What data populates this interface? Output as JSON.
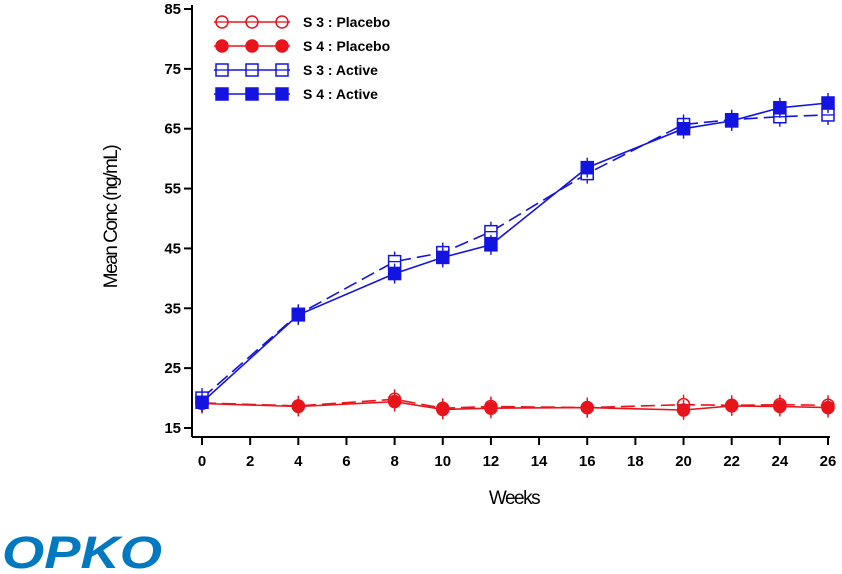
{
  "chart_data": {
    "type": "line",
    "title": "",
    "xlabel": "Weeks",
    "ylabel": "Mean Conc (ng/mL)",
    "xlim": [
      0,
      26
    ],
    "ylim": [
      15,
      85
    ],
    "x_ticks": [
      0,
      2,
      4,
      6,
      8,
      10,
      12,
      14,
      16,
      18,
      20,
      22,
      24,
      26
    ],
    "y_ticks": [
      15,
      25,
      35,
      45,
      55,
      65,
      75,
      85
    ],
    "grid": false,
    "legend_position": "top-left",
    "series": [
      {
        "name": "S 3 : Placebo",
        "color": "#e8141c",
        "marker": "open-circle",
        "line": "dashed",
        "x": [
          0,
          4,
          8,
          10,
          12,
          16,
          20,
          22,
          24,
          26
        ],
        "y": [
          19.2,
          18.7,
          19.8,
          18.3,
          18.6,
          18.4,
          18.9,
          18.8,
          18.9,
          18.8
        ]
      },
      {
        "name": "S 4 : Placebo",
        "color": "#e8141c",
        "marker": "filled-circle",
        "line": "solid",
        "x": [
          0,
          4,
          8,
          10,
          12,
          16,
          20,
          22,
          24,
          26
        ],
        "y": [
          19.1,
          18.6,
          19.4,
          18.1,
          18.3,
          18.4,
          18.0,
          18.7,
          18.6,
          18.4
        ]
      },
      {
        "name": "S 3 : Active",
        "color": "#1414e0",
        "marker": "open-square",
        "line": "dashed",
        "x": [
          0,
          4,
          8,
          10,
          12,
          16,
          20,
          22,
          24,
          26
        ],
        "y": [
          20.0,
          34.0,
          42.8,
          44.3,
          47.8,
          57.5,
          65.7,
          66.5,
          67.0,
          67.3
        ]
      },
      {
        "name": "S 4 : Active",
        "color": "#1414e0",
        "marker": "filled-square",
        "line": "solid",
        "x": [
          0,
          4,
          8,
          10,
          12,
          16,
          20,
          22,
          24,
          26
        ],
        "y": [
          19.3,
          33.9,
          40.8,
          43.5,
          45.6,
          58.5,
          65.0,
          66.3,
          68.5,
          69.3
        ]
      }
    ]
  },
  "footer": {
    "logo_text": "OPKO",
    "logo_color": "#0079c1"
  }
}
